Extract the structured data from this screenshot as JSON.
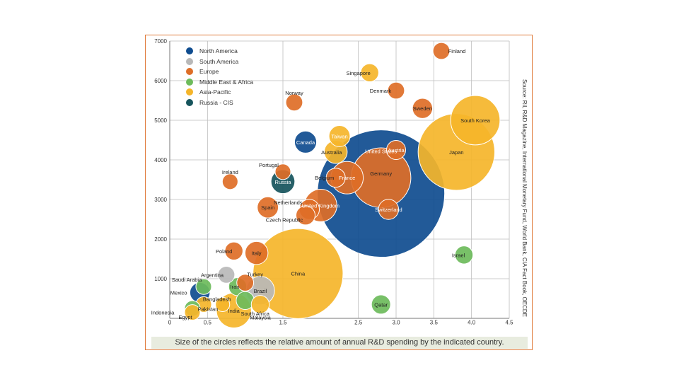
{
  "chart_data": {
    "type": "scatter",
    "subtype": "bubble",
    "title": "",
    "xlabel": "",
    "ylabel": "",
    "xlim": [
      0,
      4.5
    ],
    "ylim": [
      0,
      7000
    ],
    "x_ticks": [
      0,
      0.5,
      1.5,
      2.5,
      3.0,
      3.5,
      4.0,
      4.5
    ],
    "x_tick_labels": [
      "0",
      "0.5",
      "1.5",
      "2.5",
      "3.0",
      "3.5",
      "4.0",
      "4.5"
    ],
    "y_ticks": [
      1000,
      2000,
      3000,
      4000,
      5000,
      6000,
      7000
    ],
    "y_tick_labels": [
      "1000",
      "2000",
      "3000",
      "4000",
      "5000",
      "6000",
      "7000"
    ],
    "legend": {
      "placement": "top-left",
      "entries": [
        {
          "name": "North America",
          "color": "#0f4c8f"
        },
        {
          "name": "South America",
          "color": "#b8b8b8"
        },
        {
          "name": "Europe",
          "color": "#de6e27"
        },
        {
          "name": "Middle East & Africa",
          "color": "#6dbb5b"
        },
        {
          "name": "Asia-Pacific",
          "color": "#f5b52a"
        },
        {
          "name": "Russia - CIS",
          "color": "#16545c"
        }
      ]
    },
    "points": [
      {
        "country": "United States",
        "region": "North America",
        "x": 2.8,
        "y": 3150,
        "size": 400
      },
      {
        "country": "China",
        "region": "Asia-Pacific",
        "x": 1.7,
        "y": 1130,
        "size": 200
      },
      {
        "country": "Japan",
        "region": "Asia-Pacific",
        "x": 3.8,
        "y": 4200,
        "size": 145
      },
      {
        "country": "Germany",
        "region": "Europe",
        "x": 2.8,
        "y": 3550,
        "size": 88
      },
      {
        "country": "South Korea",
        "region": "Asia-Pacific",
        "x": 4.05,
        "y": 5000,
        "size": 60
      },
      {
        "country": "France",
        "region": "Europe",
        "x": 2.35,
        "y": 3550,
        "size": 26
      },
      {
        "country": "United Kingdom",
        "region": "Europe",
        "x": 2.0,
        "y": 2850,
        "size": 26
      },
      {
        "country": "India",
        "region": "Asia-Pacific",
        "x": 0.85,
        "y": 200,
        "size": 30
      },
      {
        "country": "Brazil",
        "region": "South America",
        "x": 1.2,
        "y": 700,
        "size": 20
      },
      {
        "country": "Canada",
        "region": "North America",
        "x": 1.8,
        "y": 4450,
        "size": 12
      },
      {
        "country": "Russia",
        "region": "Russia - CIS",
        "x": 1.5,
        "y": 3450,
        "size": 14
      },
      {
        "country": "Italy",
        "region": "Europe",
        "x": 1.15,
        "y": 1650,
        "size": 13
      },
      {
        "country": "Spain",
        "region": "Europe",
        "x": 1.3,
        "y": 2800,
        "size": 11
      },
      {
        "country": "Taiwan",
        "region": "Asia-Pacific",
        "x": 2.25,
        "y": 4600,
        "size": 11
      },
      {
        "country": "Australia",
        "region": "Asia-Pacific",
        "x": 2.2,
        "y": 4200,
        "size": 13
      },
      {
        "country": "Sweden",
        "region": "Europe",
        "x": 3.35,
        "y": 5300,
        "size": 10
      },
      {
        "country": "Netherlands",
        "region": "Europe",
        "x": 1.85,
        "y": 2750,
        "size": 10
      },
      {
        "country": "Switzerland",
        "region": "Europe",
        "x": 2.9,
        "y": 2750,
        "size": 10
      },
      {
        "country": "Austria",
        "region": "Europe",
        "x": 3.0,
        "y": 4250,
        "size": 9
      },
      {
        "country": "Belgium",
        "region": "Europe",
        "x": 2.2,
        "y": 3550,
        "size": 9
      },
      {
        "country": "Czech Republic",
        "region": "Europe",
        "x": 1.8,
        "y": 2600,
        "size": 9
      },
      {
        "country": "Poland",
        "region": "Europe",
        "x": 0.85,
        "y": 1700,
        "size": 8
      },
      {
        "country": "Finland",
        "region": "Europe",
        "x": 3.6,
        "y": 6750,
        "size": 7
      },
      {
        "country": "Denmark",
        "region": "Europe",
        "x": 3.0,
        "y": 5750,
        "size": 7
      },
      {
        "country": "Norway",
        "region": "Europe",
        "x": 1.65,
        "y": 5450,
        "size": 7
      },
      {
        "country": "Ireland",
        "region": "Europe",
        "x": 0.8,
        "y": 3450,
        "size": 6
      },
      {
        "country": "Portugal",
        "region": "Europe",
        "x": 1.5,
        "y": 3700,
        "size": 6
      },
      {
        "country": "Singapore",
        "region": "Asia-Pacific",
        "x": 2.65,
        "y": 6200,
        "size": 8
      },
      {
        "country": "Israel",
        "region": "Middle East & Africa",
        "x": 3.9,
        "y": 1600,
        "size": 8
      },
      {
        "country": "Qatar",
        "region": "Middle East & Africa",
        "x": 2.8,
        "y": 350,
        "size": 9
      },
      {
        "country": "Iran",
        "region": "Middle East & Africa",
        "x": 0.9,
        "y": 800,
        "size": 8
      },
      {
        "country": "Turkey",
        "region": "Europe",
        "x": 1.0,
        "y": 900,
        "size": 7
      },
      {
        "country": "Argentina",
        "region": "South America",
        "x": 0.75,
        "y": 1100,
        "size": 7
      },
      {
        "country": "Mexico",
        "region": "North America",
        "x": 0.4,
        "y": 650,
        "size": 10
      },
      {
        "country": "Saudi Arabia",
        "region": "Middle East & Africa",
        "x": 0.45,
        "y": 800,
        "size": 6
      },
      {
        "country": "South Africa",
        "region": "Middle East & Africa",
        "x": 1.0,
        "y": 450,
        "size": 8
      },
      {
        "country": "Malaysia",
        "region": "Asia-Pacific",
        "x": 1.2,
        "y": 350,
        "size": 8
      },
      {
        "country": "Pakistan",
        "region": "Asia-Pacific",
        "x": 0.45,
        "y": 350,
        "size": 6
      },
      {
        "country": "Bangladesh",
        "region": "Asia-Pacific",
        "x": 0.7,
        "y": 350,
        "size": 5
      },
      {
        "country": "Egypt",
        "region": "Middle East & Africa",
        "x": 0.3,
        "y": 250,
        "size": 6
      },
      {
        "country": "Indonesia",
        "region": "Asia-Pacific",
        "x": 0.3,
        "y": 150,
        "size": 6
      }
    ],
    "annotations": [
      {
        "text": "United States",
        "color": "white"
      },
      {
        "text": "China",
        "color": "dark"
      },
      {
        "text": "Japan",
        "color": "dark"
      },
      {
        "text": "Germany",
        "color": "dark"
      },
      {
        "text": "South Korea",
        "color": "dark"
      },
      {
        "text": "France",
        "color": "white"
      },
      {
        "text": "United Kingdom",
        "color": "white"
      },
      {
        "text": "India",
        "color": "dark"
      },
      {
        "text": "Brazil",
        "color": "dark"
      },
      {
        "text": "Canada",
        "color": "white"
      },
      {
        "text": "Russia",
        "color": "white"
      },
      {
        "text": "Italy",
        "color": "dark"
      },
      {
        "text": "Spain",
        "color": "dark"
      },
      {
        "text": "Taiwan",
        "color": "white"
      },
      {
        "text": "Australia",
        "color": "dark"
      },
      {
        "text": "Sweden",
        "color": "dark"
      },
      {
        "text": "Netherlands",
        "color": "dark"
      },
      {
        "text": "Czech Republic",
        "color": "dark"
      },
      {
        "text": "Switzerland",
        "color": "white"
      },
      {
        "text": "Austria",
        "color": "white"
      },
      {
        "text": "Belgium",
        "color": "dark"
      },
      {
        "text": "Poland",
        "color": "dark"
      },
      {
        "text": "Finland",
        "color": "dark"
      },
      {
        "text": "Denmark",
        "color": "dark"
      },
      {
        "text": "Norway",
        "color": "dark"
      },
      {
        "text": "Ireland",
        "color": "dark"
      },
      {
        "text": "Portugal",
        "color": "dark"
      },
      {
        "text": "Singapore",
        "color": "dark"
      },
      {
        "text": "Israel",
        "color": "dark"
      },
      {
        "text": "Qatar",
        "color": "dark"
      },
      {
        "text": "Iran",
        "color": "dark"
      },
      {
        "text": "Turkey",
        "color": "dark"
      },
      {
        "text": "Argentina",
        "color": "dark"
      },
      {
        "text": "Mexico",
        "color": "dark"
      },
      {
        "text": "Saudi Arabia",
        "color": "dark"
      },
      {
        "text": "South Africa",
        "color": "dark"
      },
      {
        "text": "Malaysia",
        "color": "dark"
      },
      {
        "text": "Pakistan",
        "color": "dark"
      },
      {
        "text": "Bangladesh",
        "color": "dark"
      },
      {
        "text": "Egypt",
        "color": "dark"
      },
      {
        "text": "Indonesia",
        "color": "dark"
      }
    ],
    "caption": "Size of the circles reflects the relative amount of annual R&D spending by the indicated country.",
    "source": "Source: Ril, R&D Magazine, International Monetary Fund, World Bank, CIA Fact Book, OECDE"
  }
}
